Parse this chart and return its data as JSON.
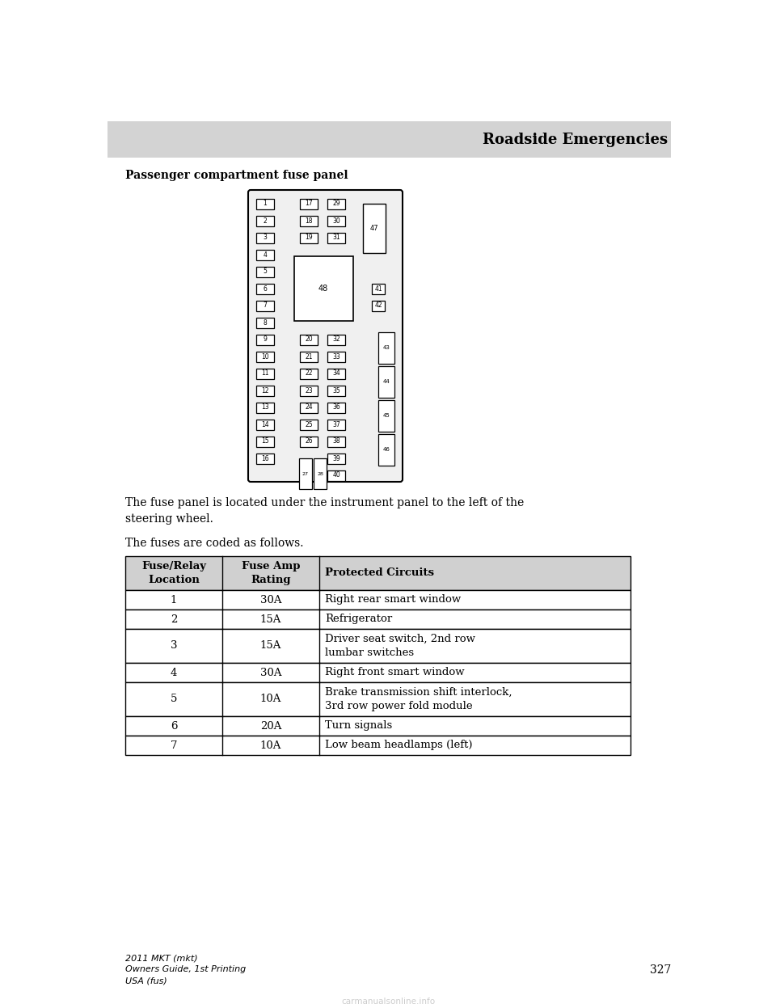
{
  "page_title": "Roadside Emergencies",
  "section_title": "Passenger compartment fuse panel",
  "body_text1": "The fuse panel is located under the instrument panel to the left of the\nsteering wheel.",
  "body_text2": "The fuses are coded as follows.",
  "table_headers": [
    "Fuse/Relay\nLocation",
    "Fuse Amp\nRating",
    "Protected Circuits"
  ],
  "table_data": [
    [
      "1",
      "30A",
      "Right rear smart window"
    ],
    [
      "2",
      "15A",
      "Refrigerator"
    ],
    [
      "3",
      "15A",
      "Driver seat switch, 2nd row\nlumbar switches"
    ],
    [
      "4",
      "30A",
      "Right front smart window"
    ],
    [
      "5",
      "10A",
      "Brake transmission shift interlock,\n3rd row power fold module"
    ],
    [
      "6",
      "20A",
      "Turn signals"
    ],
    [
      "7",
      "10A",
      "Low beam headlamps (left)"
    ]
  ],
  "footer_left": [
    "2011 MKT (mkt)",
    "Owners Guide, 1st Printing",
    "USA (fus)"
  ],
  "footer_page": "327",
  "watermark": "carmanualsonline.info",
  "header_bar_color": "#d3d3d3",
  "table_header_color": "#d0d0d0",
  "bg_color": "#ffffff"
}
